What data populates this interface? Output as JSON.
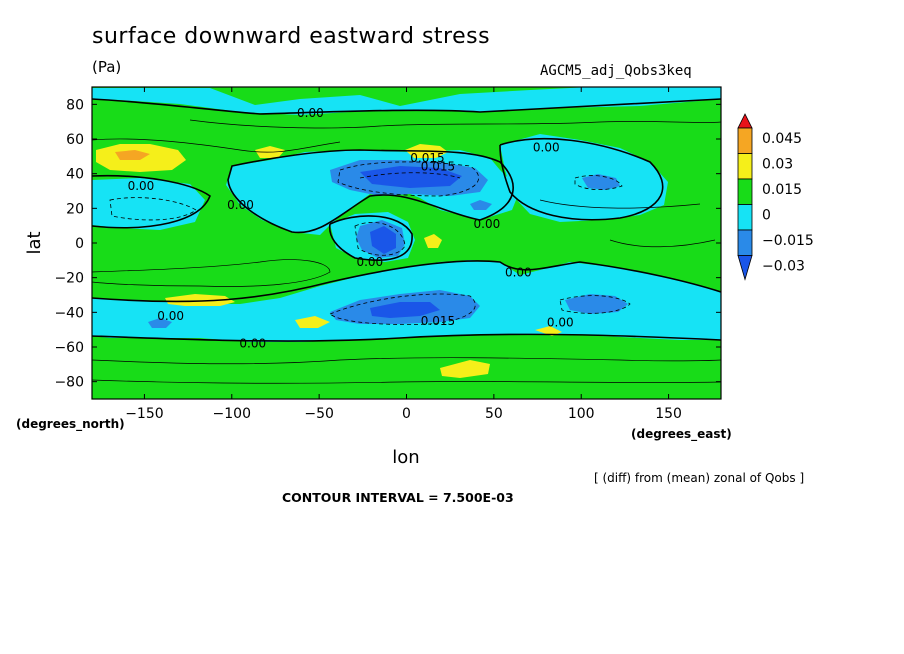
{
  "header": {
    "title": "surface downward eastward stress",
    "units": "(Pa)",
    "run_id": "AGCM5_adj_Qobs3keq"
  },
  "footer": {
    "note": "[ (diff) from (mean) zonal of Qobs ]",
    "contour_interval": "CONTOUR INTERVAL = 7.500E-03"
  },
  "chart_data": {
    "type": "heatmap",
    "title": "surface downward eastward stress",
    "units": "(Pa)",
    "xlabel": "lon",
    "ylabel": "lat",
    "x_unit_label": "(degrees_east)",
    "y_unit_label": "(degrees_north)",
    "xlim": [
      -180,
      180
    ],
    "ylim": [
      -90,
      90
    ],
    "x_ticks": [
      -150,
      -100,
      -50,
      0,
      50,
      100,
      150
    ],
    "x_tick_labels": [
      "−150",
      "−100",
      "−50",
      "0",
      "50",
      "100",
      "150"
    ],
    "y_ticks": [
      80,
      60,
      40,
      20,
      0,
      -20,
      -40,
      -60,
      -80
    ],
    "y_tick_labels": [
      "80",
      "60",
      "40",
      "20",
      "0",
      "−20",
      "−40",
      "−60",
      "−80"
    ],
    "contour_interval": 0.0075,
    "colorbar": {
      "levels": [
        0.045,
        0.03,
        0.015,
        0,
        -0.015,
        -0.03
      ],
      "labels": [
        "0.045",
        "0.03",
        "0.015",
        "0",
        "−0.015",
        "−0.03"
      ],
      "colors": [
        "#e8131a",
        "#f5a623",
        "#f5ef1a",
        "#18dc18",
        "#16e3f5",
        "#2a8ae8",
        "#1a56e8"
      ]
    },
    "colors": {
      "background_band": "#18dc18",
      "positive_1": "#f5ef1a",
      "negative_1": "#16e3f5",
      "negative_2": "#2a8ae8",
      "negative_3": "#1a56e8"
    },
    "contour_labels": [
      {
        "text": "0.00",
        "lon": -55,
        "lat": 75
      },
      {
        "text": "0.00",
        "lon": 80,
        "lat": 55
      },
      {
        "text": "0.015",
        "lon": 12,
        "lat": 49
      },
      {
        "text": "0.015",
        "lon": 18,
        "lat": 44
      },
      {
        "text": "0.00",
        "lon": -152,
        "lat": 33
      },
      {
        "text": "0.00",
        "lon": -95,
        "lat": 22
      },
      {
        "text": "0.00",
        "lon": 46,
        "lat": 11
      },
      {
        "text": "0.00",
        "lon": -21,
        "lat": -11
      },
      {
        "text": "0.00",
        "lon": 64,
        "lat": -17
      },
      {
        "text": "0.00",
        "lon": -135,
        "lat": -42
      },
      {
        "text": "0.015",
        "lon": 18,
        "lat": -45
      },
      {
        "text": "0.00",
        "lon": 88,
        "lat": -46
      },
      {
        "text": "0.00",
        "lon": -88,
        "lat": -58
      }
    ]
  }
}
